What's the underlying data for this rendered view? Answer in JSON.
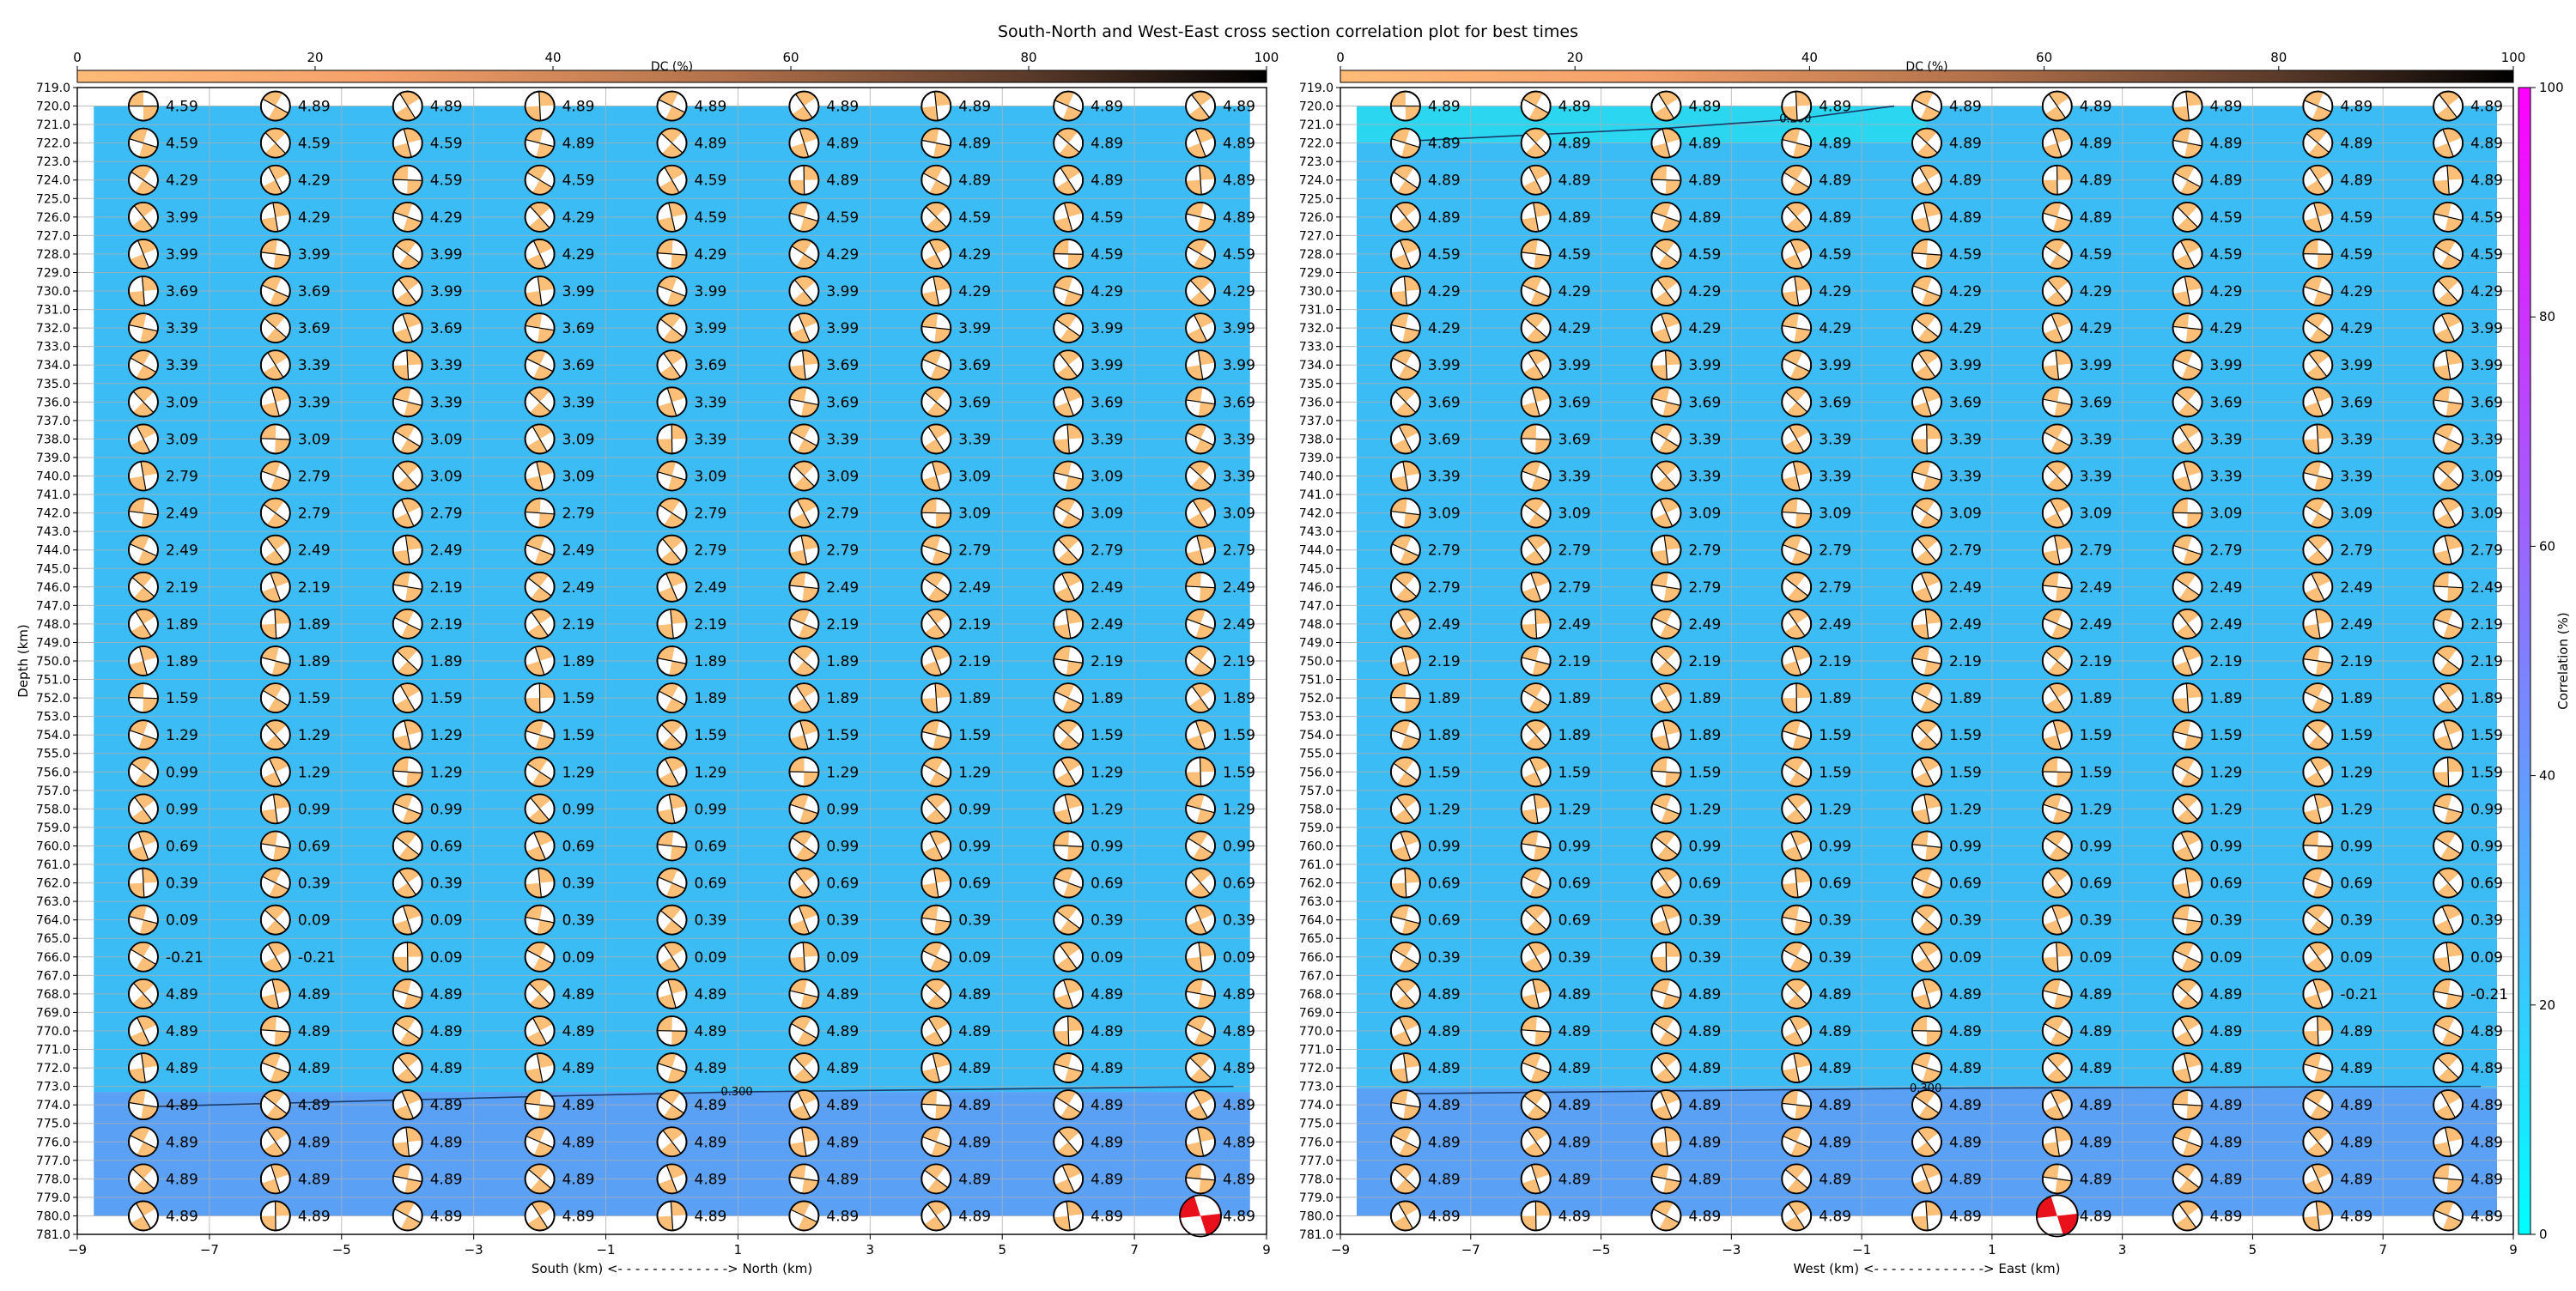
{
  "title": "South-North and West-East cross section correlation plot for best times",
  "chart_data": [
    {
      "type": "heatmap",
      "panel": "south-north",
      "xlabel": "South (km) <- - - - - - - - - - - - -> North (km)",
      "ylabel": "Depth (km)",
      "xlim": [
        -9,
        9
      ],
      "ylim": [
        781,
        719
      ],
      "x_ticks": [
        "−9",
        "−7",
        "−5",
        "−3",
        "−1",
        "1",
        "3",
        "5",
        "7",
        "9"
      ],
      "y_tick_start": 719.0,
      "y_tick_end": 781.0,
      "y_tick_step": 1.0,
      "grid": true,
      "dc_axis": {
        "label": "DC (%)",
        "range": [
          0,
          100
        ],
        "ticks": [
          "0",
          "20",
          "40",
          "60",
          "80",
          "100"
        ],
        "colors": [
          "#ffbb77",
          "#f09060",
          "#6b4a3a",
          "#000000"
        ]
      },
      "correlation_fill": [
        {
          "depth_top": 720,
          "depth_bottom": 773.3,
          "color": "#3bbcf5"
        },
        {
          "depth_top": 773.3,
          "depth_bottom": 780,
          "color": "#5aa0f5"
        }
      ],
      "contours": [
        {
          "label": "0.300",
          "points": [
            [
              -8,
              774.1
            ],
            [
              -1.5,
              773.5
            ],
            [
              1,
              773.3
            ],
            [
              8.5,
              773.0
            ]
          ]
        }
      ],
      "beachball_x": [
        -8,
        -6,
        -4,
        -2,
        0,
        2,
        4,
        6,
        8
      ],
      "beachball_depths": [
        720,
        722,
        724,
        726,
        728,
        730,
        732,
        734,
        736,
        738,
        740,
        742,
        744,
        746,
        748,
        750,
        752,
        754,
        756,
        758,
        760,
        762,
        764,
        766,
        768,
        770,
        772,
        774,
        776,
        778,
        780
      ],
      "magnitudes": [
        [
          "4.59",
          "4.89",
          "4.89",
          "4.89",
          "4.89",
          "4.89",
          "4.89",
          "4.89",
          "4.89"
        ],
        [
          "4.59",
          "4.59",
          "4.59",
          "4.89",
          "4.89",
          "4.89",
          "4.89",
          "4.89",
          "4.89"
        ],
        [
          "4.29",
          "4.29",
          "4.59",
          "4.59",
          "4.59",
          "4.89",
          "4.89",
          "4.89",
          "4.89"
        ],
        [
          "3.99",
          "4.29",
          "4.29",
          "4.29",
          "4.59",
          "4.59",
          "4.59",
          "4.59",
          "4.89"
        ],
        [
          "3.99",
          "3.99",
          "3.99",
          "4.29",
          "4.29",
          "4.29",
          "4.29",
          "4.59",
          "4.59"
        ],
        [
          "3.69",
          "3.69",
          "3.99",
          "3.99",
          "3.99",
          "3.99",
          "4.29",
          "4.29",
          "4.29"
        ],
        [
          "3.39",
          "3.69",
          "3.69",
          "3.69",
          "3.99",
          "3.99",
          "3.99",
          "3.99",
          "3.99"
        ],
        [
          "3.39",
          "3.39",
          "3.39",
          "3.69",
          "3.69",
          "3.69",
          "3.69",
          "3.99",
          "3.99"
        ],
        [
          "3.09",
          "3.39",
          "3.39",
          "3.39",
          "3.39",
          "3.69",
          "3.69",
          "3.69",
          "3.69"
        ],
        [
          "3.09",
          "3.09",
          "3.09",
          "3.09",
          "3.39",
          "3.39",
          "3.39",
          "3.39",
          "3.39"
        ],
        [
          "2.79",
          "2.79",
          "3.09",
          "3.09",
          "3.09",
          "3.09",
          "3.09",
          "3.09",
          "3.39"
        ],
        [
          "2.49",
          "2.79",
          "2.79",
          "2.79",
          "2.79",
          "2.79",
          "3.09",
          "3.09",
          "3.09"
        ],
        [
          "2.49",
          "2.49",
          "2.49",
          "2.49",
          "2.79",
          "2.79",
          "2.79",
          "2.79",
          "2.79"
        ],
        [
          "2.19",
          "2.19",
          "2.19",
          "2.49",
          "2.49",
          "2.49",
          "2.49",
          "2.49",
          "2.49"
        ],
        [
          "1.89",
          "1.89",
          "2.19",
          "2.19",
          "2.19",
          "2.19",
          "2.19",
          "2.49",
          "2.49"
        ],
        [
          "1.89",
          "1.89",
          "1.89",
          "1.89",
          "1.89",
          "1.89",
          "2.19",
          "2.19",
          "2.19"
        ],
        [
          "1.59",
          "1.59",
          "1.59",
          "1.59",
          "1.89",
          "1.89",
          "1.89",
          "1.89",
          "1.89"
        ],
        [
          "1.29",
          "1.29",
          "1.29",
          "1.59",
          "1.59",
          "1.59",
          "1.59",
          "1.59",
          "1.59"
        ],
        [
          "0.99",
          "1.29",
          "1.29",
          "1.29",
          "1.29",
          "1.29",
          "1.29",
          "1.29",
          "1.59"
        ],
        [
          "0.99",
          "0.99",
          "0.99",
          "0.99",
          "0.99",
          "0.99",
          "0.99",
          "1.29",
          "1.29"
        ],
        [
          "0.69",
          "0.69",
          "0.69",
          "0.69",
          "0.69",
          "0.99",
          "0.99",
          "0.99",
          "0.99"
        ],
        [
          "0.39",
          "0.39",
          "0.39",
          "0.39",
          "0.69",
          "0.69",
          "0.69",
          "0.69",
          "0.69"
        ],
        [
          "0.09",
          "0.09",
          "0.09",
          "0.39",
          "0.39",
          "0.39",
          "0.39",
          "0.39",
          "0.39"
        ],
        [
          "-0.21",
          "-0.21",
          "0.09",
          "0.09",
          "0.09",
          "0.09",
          "0.09",
          "0.09",
          "0.09"
        ],
        [
          "4.89",
          "4.89",
          "4.89",
          "4.89",
          "4.89",
          "4.89",
          "4.89",
          "4.89",
          "4.89"
        ],
        [
          "4.89",
          "4.89",
          "4.89",
          "4.89",
          "4.89",
          "4.89",
          "4.89",
          "4.89",
          "4.89"
        ],
        [
          "4.89",
          "4.89",
          "4.89",
          "4.89",
          "4.89",
          "4.89",
          "4.89",
          "4.89",
          "4.89"
        ],
        [
          "4.89",
          "4.89",
          "4.89",
          "4.89",
          "4.89",
          "4.89",
          "4.89",
          "4.89",
          "4.89"
        ],
        [
          "4.89",
          "4.89",
          "4.89",
          "4.89",
          "4.89",
          "4.89",
          "4.89",
          "4.89",
          "4.89"
        ],
        [
          "4.89",
          "4.89",
          "4.89",
          "4.89",
          "4.89",
          "4.89",
          "4.89",
          "4.89",
          "4.89"
        ],
        [
          "4.89",
          "4.89",
          "4.89",
          "4.89",
          "4.89",
          "4.89",
          "4.89",
          "4.89",
          "4.89"
        ]
      ],
      "best_solution": {
        "x": 8,
        "depth": 780,
        "color": "#e8101a"
      }
    },
    {
      "type": "heatmap",
      "panel": "west-east",
      "xlabel": "West (km) <- - - - - - - - - - - - -> East (km)",
      "ylabel": "",
      "xlim": [
        -9,
        9
      ],
      "ylim": [
        781,
        719
      ],
      "x_ticks": [
        "−9",
        "−7",
        "−5",
        "−3",
        "−1",
        "1",
        "3",
        "5",
        "7",
        "9"
      ],
      "y_tick_start": 719.0,
      "y_tick_end": 781.0,
      "y_tick_step": 1.0,
      "grid": true,
      "dc_axis": {
        "label": "DC (%)",
        "range": [
          0,
          100
        ],
        "ticks": [
          "0",
          "20",
          "40",
          "60",
          "80",
          "100"
        ],
        "colors": [
          "#ffbb77",
          "#f09060",
          "#6b4a3a",
          "#000000"
        ]
      },
      "correlation_fill": [
        {
          "depth_top": 720,
          "depth_bottom": 773.1,
          "color": "#3bbcf5"
        },
        {
          "depth_top": 773.1,
          "depth_bottom": 780,
          "color": "#5aa0f5"
        }
      ],
      "correlation_patch": {
        "x_from": -9,
        "x_to": 0,
        "depth_top": 720,
        "depth_bottom": 722,
        "color": "#2ad6f0"
      },
      "contours": [
        {
          "label": "0.200",
          "points": [
            [
              -8,
              721.9
            ],
            [
              -4,
              721.2
            ],
            [
              -2,
              720.7
            ],
            [
              -0.5,
              720.0
            ]
          ]
        },
        {
          "label": "0.300",
          "points": [
            [
              -8,
              773.4
            ],
            [
              0,
              773.1
            ],
            [
              8.5,
              773.0
            ]
          ]
        }
      ],
      "beachball_x": [
        -8,
        -6,
        -4,
        -2,
        0,
        2,
        4,
        6,
        8
      ],
      "beachball_depths": [
        720,
        722,
        724,
        726,
        728,
        730,
        732,
        734,
        736,
        738,
        740,
        742,
        744,
        746,
        748,
        750,
        752,
        754,
        756,
        758,
        760,
        762,
        764,
        766,
        768,
        770,
        772,
        774,
        776,
        778,
        780
      ],
      "magnitudes": [
        [
          "4.89",
          "4.89",
          "4.89",
          "4.89",
          "4.89",
          "4.89",
          "4.89",
          "4.89",
          "4.89"
        ],
        [
          "4.89",
          "4.89",
          "4.89",
          "4.89",
          "4.89",
          "4.89",
          "4.89",
          "4.89",
          "4.89"
        ],
        [
          "4.89",
          "4.89",
          "4.89",
          "4.89",
          "4.89",
          "4.89",
          "4.89",
          "4.89",
          "4.89"
        ],
        [
          "4.89",
          "4.89",
          "4.89",
          "4.89",
          "4.89",
          "4.89",
          "4.59",
          "4.59",
          "4.59"
        ],
        [
          "4.59",
          "4.59",
          "4.59",
          "4.59",
          "4.59",
          "4.59",
          "4.59",
          "4.59",
          "4.59"
        ],
        [
          "4.29",
          "4.29",
          "4.29",
          "4.29",
          "4.29",
          "4.29",
          "4.29",
          "4.29",
          "4.29"
        ],
        [
          "4.29",
          "4.29",
          "4.29",
          "4.29",
          "4.29",
          "4.29",
          "4.29",
          "4.29",
          "3.99"
        ],
        [
          "3.99",
          "3.99",
          "3.99",
          "3.99",
          "3.99",
          "3.99",
          "3.99",
          "3.99",
          "3.99"
        ],
        [
          "3.69",
          "3.69",
          "3.69",
          "3.69",
          "3.69",
          "3.69",
          "3.69",
          "3.69",
          "3.69"
        ],
        [
          "3.69",
          "3.69",
          "3.39",
          "3.39",
          "3.39",
          "3.39",
          "3.39",
          "3.39",
          "3.39"
        ],
        [
          "3.39",
          "3.39",
          "3.39",
          "3.39",
          "3.39",
          "3.39",
          "3.39",
          "3.39",
          "3.09"
        ],
        [
          "3.09",
          "3.09",
          "3.09",
          "3.09",
          "3.09",
          "3.09",
          "3.09",
          "3.09",
          "3.09"
        ],
        [
          "2.79",
          "2.79",
          "2.79",
          "2.79",
          "2.79",
          "2.79",
          "2.79",
          "2.79",
          "2.79"
        ],
        [
          "2.79",
          "2.79",
          "2.79",
          "2.79",
          "2.49",
          "2.49",
          "2.49",
          "2.49",
          "2.49"
        ],
        [
          "2.49",
          "2.49",
          "2.49",
          "2.49",
          "2.49",
          "2.49",
          "2.49",
          "2.49",
          "2.19"
        ],
        [
          "2.19",
          "2.19",
          "2.19",
          "2.19",
          "2.19",
          "2.19",
          "2.19",
          "2.19",
          "2.19"
        ],
        [
          "1.89",
          "1.89",
          "1.89",
          "1.89",
          "1.89",
          "1.89",
          "1.89",
          "1.89",
          "1.89"
        ],
        [
          "1.89",
          "1.89",
          "1.89",
          "1.59",
          "1.59",
          "1.59",
          "1.59",
          "1.59",
          "1.59"
        ],
        [
          "1.59",
          "1.59",
          "1.59",
          "1.59",
          "1.59",
          "1.59",
          "1.29",
          "1.29",
          "1.59"
        ],
        [
          "1.29",
          "1.29",
          "1.29",
          "1.29",
          "1.29",
          "1.29",
          "1.29",
          "1.29",
          "0.99"
        ],
        [
          "0.99",
          "0.99",
          "0.99",
          "0.99",
          "0.99",
          "0.99",
          "0.99",
          "0.99",
          "0.99"
        ],
        [
          "0.69",
          "0.69",
          "0.69",
          "0.69",
          "0.69",
          "0.69",
          "0.69",
          "0.69",
          "0.69"
        ],
        [
          "0.69",
          "0.69",
          "0.39",
          "0.39",
          "0.39",
          "0.39",
          "0.39",
          "0.39",
          "0.39"
        ],
        [
          "0.39",
          "0.39",
          "0.39",
          "0.39",
          "0.09",
          "0.09",
          "0.09",
          "0.09",
          "0.09"
        ],
        [
          "4.89",
          "4.89",
          "4.89",
          "4.89",
          "4.89",
          "4.89",
          "4.89",
          "-0.21",
          "-0.21"
        ],
        [
          "4.89",
          "4.89",
          "4.89",
          "4.89",
          "4.89",
          "4.89",
          "4.89",
          "4.89",
          "4.89"
        ],
        [
          "4.89",
          "4.89",
          "4.89",
          "4.89",
          "4.89",
          "4.89",
          "4.89",
          "4.89",
          "4.89"
        ],
        [
          "4.89",
          "4.89",
          "4.89",
          "4.89",
          "4.89",
          "4.89",
          "4.89",
          "4.89",
          "4.89"
        ],
        [
          "4.89",
          "4.89",
          "4.89",
          "4.89",
          "4.89",
          "4.89",
          "4.89",
          "4.89",
          "4.89"
        ],
        [
          "4.89",
          "4.89",
          "4.89",
          "4.89",
          "4.89",
          "4.89",
          "4.89",
          "4.89",
          "4.89"
        ],
        [
          "4.89",
          "4.89",
          "4.89",
          "4.89",
          "4.89",
          "4.89",
          "4.89",
          "4.89",
          "4.89"
        ]
      ],
      "best_solution": {
        "x": 2,
        "depth": 780,
        "color": "#e8101a"
      }
    }
  ],
  "correlation_colorbar": {
    "label": "Correlation (%)",
    "range": [
      0,
      100
    ],
    "ticks": [
      "0",
      "20",
      "40",
      "60",
      "80",
      "100"
    ],
    "colors": [
      "#00ffff",
      "#ff00ff"
    ]
  }
}
